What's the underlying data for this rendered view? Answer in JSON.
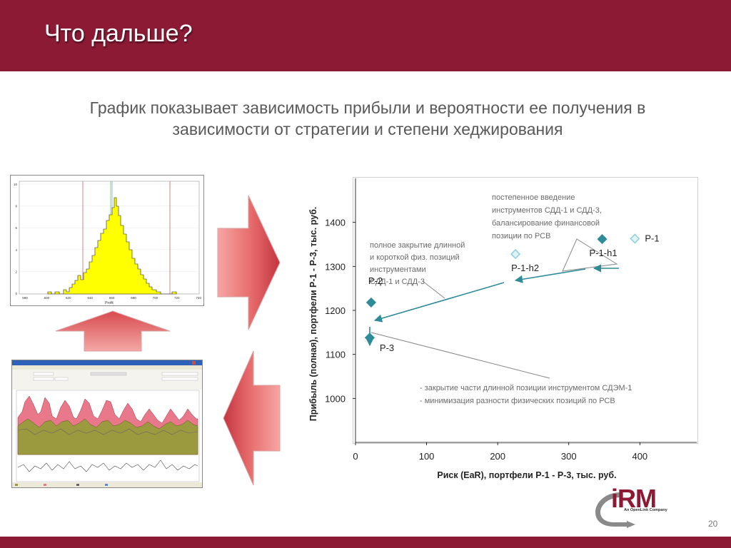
{
  "header": {
    "title": "Что дальше?"
  },
  "subtitle": {
    "line1": "График показывает зависимость прибыли и вероятности ее получения в",
    "line2": "зависимости от стратегии и  степени хеджирования"
  },
  "page_number": "20",
  "logo": {
    "text": "iRM",
    "subtitle": "An OpenLink Company"
  },
  "colors": {
    "header": "#8c1a35",
    "arrow": "#e0474c",
    "series_dark": "#2e8b9a",
    "series_light": "#8fcfd8",
    "subtitle_text": "#595959"
  },
  "histogram": {
    "y_ticks": [
      "10",
      "8",
      "6",
      "4",
      "2",
      "0"
    ],
    "x_ticks": [
      "580",
      "600",
      "620",
      "640",
      "660",
      "680",
      "700",
      "720",
      "740"
    ],
    "xlabel": "Profit"
  },
  "chart_data": {
    "type": "scatter",
    "xlabel": "Риск (EaR), портфели Р-1 - Р-3,  тыс. руб.",
    "ylabel": "Прибыль (полная), портфели Р-1 - Р-3,  тыс. руб.",
    "xlim": [
      0,
      480
    ],
    "ylim": [
      900,
      1500
    ],
    "x_ticks": [
      0,
      100,
      200,
      300,
      400
    ],
    "y_ticks": [
      1000,
      1100,
      1200,
      1300,
      1400
    ],
    "points": [
      {
        "label": "Р-1",
        "x": 393,
        "y": 1363,
        "style": "light"
      },
      {
        "label": "Р-1-h1",
        "x": 347,
        "y": 1362,
        "style": "dark"
      },
      {
        "label": "Р-1-h2",
        "x": 225,
        "y": 1328,
        "style": "light"
      },
      {
        "label": "Р-2",
        "x": 22,
        "y": 1218,
        "style": "dark"
      },
      {
        "label": "Р-3",
        "x": 20,
        "y": 1138,
        "style": "dark"
      }
    ],
    "annotations": [
      {
        "lines": [
          "постепенное введение",
          "инструментов СДД-1  и СДД-3,",
          "балансирование финансовой",
          "позиции по РСВ"
        ]
      },
      {
        "lines": [
          "полное закрытие длинной",
          "и короткой физ. позиций",
          "инструментами",
          "СДД-1 и СДД-3"
        ]
      },
      {
        "lines": [
          "- закрытие части длинной позиции инструментом СДЭМ-1",
          "- минимизация разности физических позиций по РСВ"
        ]
      }
    ]
  }
}
